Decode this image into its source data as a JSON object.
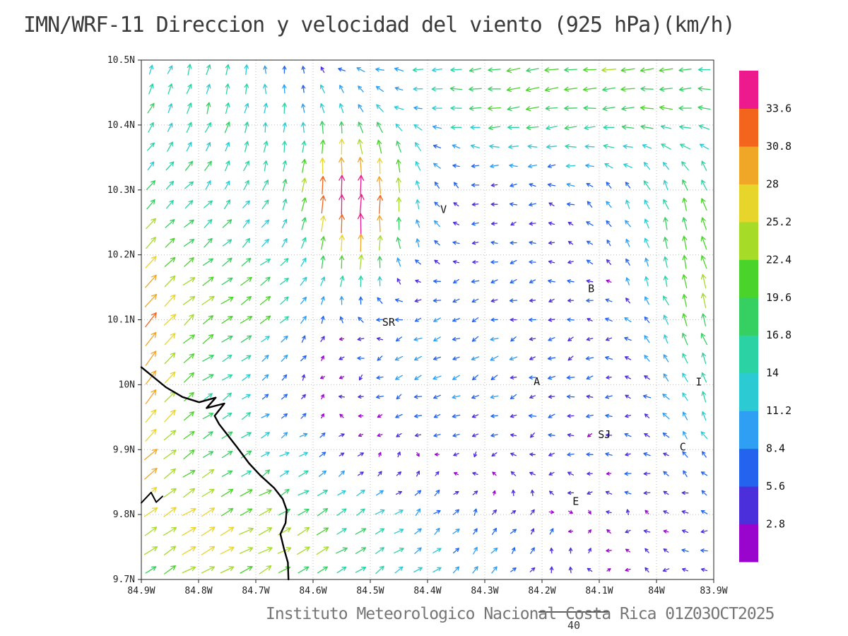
{
  "title": "IMN/WRF-11 Direccion y velocidad del viento (925 hPa)(km/h)",
  "footer": {
    "credit": "Instituto Meteorologico Nacional Costa Rica 01Z03OCT2025"
  },
  "chart_data": {
    "type": "vector_field",
    "title": "IMN/WRF-11 Direccion y velocidad del viento (925 hPa)(km/h)",
    "units": "km/h",
    "lon_range": [
      -84.9,
      -83.9
    ],
    "lat_range": [
      9.7,
      10.5
    ],
    "x_ticks": [
      "84.9W",
      "84.8W",
      "84.7W",
      "84.6W",
      "84.5W",
      "84.4W",
      "84.3W",
      "84.2W",
      "84.1W",
      "84W",
      "83.9W"
    ],
    "y_ticks": [
      "9.7N",
      "9.8N",
      "9.9N",
      "10N",
      "10.1N",
      "10.2N",
      "10.3N",
      "10.4N",
      "10.5N"
    ],
    "grid_step_deg": 0.1,
    "colorbar": {
      "levels": [
        2.8,
        5.6,
        8.4,
        11.2,
        14,
        16.8,
        19.6,
        22.4,
        25.2,
        28,
        30.8,
        33.6
      ],
      "colors": [
        "#9905cc",
        "#4b2fdb",
        "#2363ed",
        "#2e9ff2",
        "#2ccbd4",
        "#2bd3a4",
        "#36cf62",
        "#4ad32b",
        "#a6db28",
        "#e8d52b",
        "#f0a626",
        "#f3641c",
        "#ec1a8c"
      ]
    },
    "reference_vector": {
      "label": "40",
      "value": 40
    },
    "stations": [
      {
        "label": "V",
        "lon": -84.372,
        "lat": 10.27
      },
      {
        "label": "B",
        "lon": -84.114,
        "lat": 10.148
      },
      {
        "label": "SR",
        "lon": -84.468,
        "lat": 10.096
      },
      {
        "label": "A",
        "lon": -84.209,
        "lat": 10.005
      },
      {
        "label": "I",
        "lon": -83.926,
        "lat": 10.004
      },
      {
        "label": "SJ",
        "lon": -84.091,
        "lat": 9.923
      },
      {
        "label": "C",
        "lon": -83.954,
        "lat": 9.904
      },
      {
        "label": "E",
        "lon": -84.141,
        "lat": 9.82
      }
    ],
    "coastline": [
      [
        -84.9,
        10.027
      ],
      [
        -84.857,
        9.996
      ],
      [
        -84.828,
        9.981
      ],
      [
        -84.799,
        9.973
      ],
      [
        -84.77,
        9.98
      ],
      [
        -84.786,
        9.964
      ],
      [
        -84.755,
        9.971
      ],
      [
        -84.772,
        9.952
      ],
      [
        -84.764,
        9.939
      ],
      [
        -84.733,
        9.904
      ],
      [
        -84.712,
        9.879
      ],
      [
        -84.693,
        9.861
      ],
      [
        -84.668,
        9.841
      ],
      [
        -84.653,
        9.824
      ],
      [
        -84.646,
        9.807
      ],
      [
        -84.648,
        9.787
      ],
      [
        -84.657,
        9.77
      ],
      [
        -84.651,
        9.748
      ],
      [
        -84.644,
        9.726
      ],
      [
        -84.643,
        9.7
      ]
    ],
    "islet": [
      [
        -84.9,
        9.818
      ],
      [
        -84.883,
        9.834
      ],
      [
        -84.874,
        9.819
      ],
      [
        -84.863,
        9.828
      ]
    ],
    "wind_field": {
      "nx": 30,
      "ny": 27,
      "background": {
        "u": -5,
        "v": -1
      },
      "noise_amp": 2.4,
      "features": [
        {
          "name": "west-northeasterly",
          "lon": -84.95,
          "lat": 10.05,
          "rlon": 0.42,
          "rlat": 0.6,
          "u": 19,
          "v": 11
        },
        {
          "name": "coastal-jet",
          "lon": -84.9,
          "lat": 10.03,
          "rlon": 0.07,
          "rlat": 0.22,
          "u": 5,
          "v": 15
        },
        {
          "name": "west-mid-maximum",
          "lon": -84.72,
          "lat": 10.13,
          "rlon": 0.13,
          "rlat": 0.11,
          "u": 9,
          "v": 6
        },
        {
          "name": "southwest-easterly",
          "lon": -84.72,
          "lat": 9.76,
          "rlon": 0.28,
          "rlat": 0.15,
          "u": 13,
          "v": 5
        },
        {
          "name": "volcano-jet",
          "lon": -84.52,
          "lat": 10.26,
          "rlon": 0.09,
          "rlat": 0.11,
          "u": 2,
          "v": 30
        },
        {
          "name": "volcano-fan",
          "lon": -84.55,
          "lat": 10.34,
          "rlon": 0.17,
          "rlat": 0.1,
          "u": 0,
          "v": 12
        },
        {
          "name": "north-westerly-band",
          "lon": -84.12,
          "lat": 10.46,
          "rlon": 0.4,
          "rlat": 0.12,
          "u": -17,
          "v": -2
        },
        {
          "name": "northwest-corner-northerly",
          "lon": -84.78,
          "lat": 10.46,
          "rlon": 0.18,
          "rlat": 0.12,
          "u": 0,
          "v": 9
        },
        {
          "name": "east-edge-northerly",
          "lon": -83.91,
          "lat": 10.1,
          "rlon": 0.1,
          "rlat": 0.2,
          "u": -2,
          "v": 20
        },
        {
          "name": "east-updraft",
          "lon": -83.97,
          "lat": 10.27,
          "rlon": 0.15,
          "rlat": 0.13,
          "u": 2,
          "v": 12
        },
        {
          "name": "south-central-northeasterly",
          "lon": -84.38,
          "lat": 9.74,
          "rlon": 0.3,
          "rlat": 0.13,
          "u": 9,
          "v": 6
        },
        {
          "name": "central-southwesterly",
          "lon": -84.45,
          "lat": 10.02,
          "rlon": 0.22,
          "rlat": 0.18,
          "u": -7,
          "v": -5
        }
      ]
    },
    "style_colors": {
      "grid": "#bdbdbd",
      "frame": "#222222",
      "coast": "#000000",
      "axis_text": "#222222",
      "station_text": "#111111"
    }
  }
}
